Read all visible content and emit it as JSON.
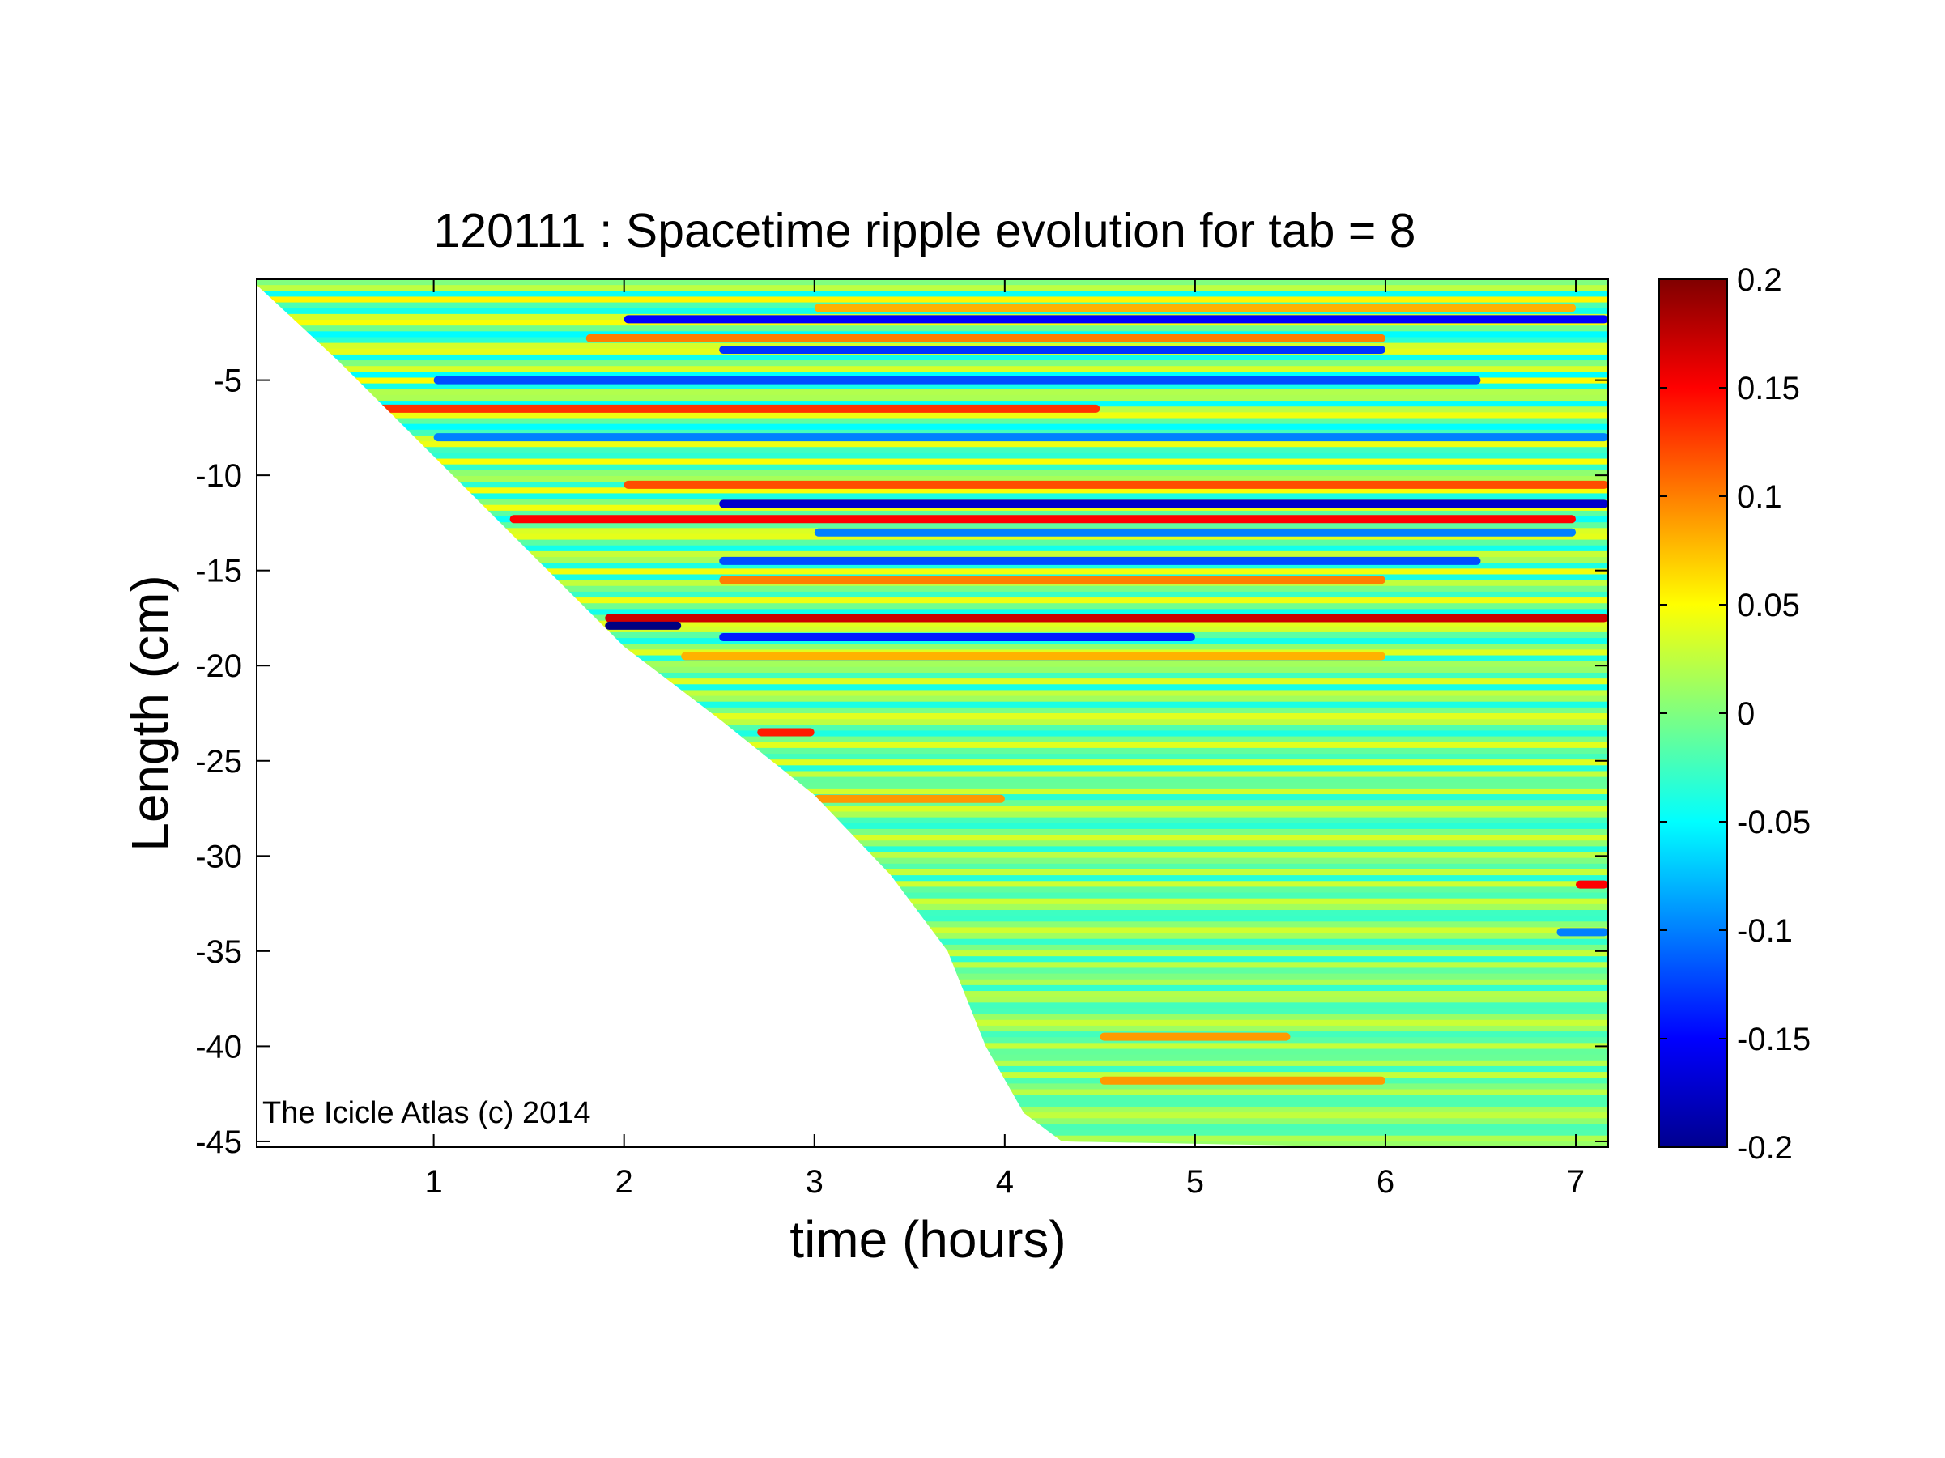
{
  "chart_data": {
    "type": "heatmap",
    "title": "120111 : Spacetime ripple evolution for tab = 8",
    "xlabel": "time (hours)",
    "ylabel": "Length (cm)",
    "xlim": [
      0.07,
      7.17
    ],
    "ylim": [
      -45.3,
      0.3
    ],
    "x_ticks": [
      1,
      2,
      3,
      4,
      5,
      6,
      7
    ],
    "x_tick_labels": [
      "1",
      "2",
      "3",
      "4",
      "5",
      "6",
      "7"
    ],
    "y_ticks": [
      -5,
      -10,
      -15,
      -20,
      -25,
      -30,
      -35,
      -40,
      -45
    ],
    "y_tick_labels": [
      "-5",
      "-10",
      "-15",
      "-20",
      "-25",
      "-30",
      "-35",
      "-40",
      "-45"
    ],
    "colorbar": {
      "colormap": "jet",
      "clim": [
        -0.2,
        0.2
      ],
      "ticks": [
        0.2,
        0.15,
        0.1,
        0.05,
        0,
        -0.05,
        -0.1,
        -0.15,
        -0.2
      ],
      "tick_labels": [
        "0.2",
        "0.15",
        "0.1",
        "0.05",
        "0",
        "-0.05",
        "-0.1",
        "-0.15",
        "-0.2"
      ]
    },
    "growth_front": [
      [
        0.07,
        0.0
      ],
      [
        0.5,
        -4.0
      ],
      [
        1.0,
        -9.0
      ],
      [
        1.5,
        -14.0
      ],
      [
        2.0,
        -19.0
      ],
      [
        2.5,
        -22.8
      ],
      [
        3.0,
        -26.8
      ],
      [
        3.4,
        -31.0
      ],
      [
        3.7,
        -35.0
      ],
      [
        3.9,
        -40.0
      ],
      [
        4.1,
        -43.5
      ],
      [
        4.3,
        -45.0
      ]
    ],
    "features": [
      {
        "y": -1.8,
        "x_start": 2.0,
        "x_end": 7.17,
        "value": -0.15
      },
      {
        "y": -1.2,
        "x_start": 3.0,
        "x_end": 7.0,
        "value": 0.08
      },
      {
        "y": -2.8,
        "x_start": 1.8,
        "x_end": 6.0,
        "value": 0.1
      },
      {
        "y": -3.4,
        "x_start": 2.5,
        "x_end": 6.0,
        "value": -0.13
      },
      {
        "y": -5.0,
        "x_start": 1.0,
        "x_end": 6.5,
        "value": -0.12
      },
      {
        "y": -6.5,
        "x_start": 0.6,
        "x_end": 4.5,
        "value": 0.13
      },
      {
        "y": -8.0,
        "x_start": 1.0,
        "x_end": 7.17,
        "value": -0.1
      },
      {
        "y": -10.5,
        "x_start": 2.0,
        "x_end": 7.17,
        "value": 0.12
      },
      {
        "y": -11.5,
        "x_start": 2.5,
        "x_end": 7.17,
        "value": -0.17
      },
      {
        "y": -12.3,
        "x_start": 1.4,
        "x_end": 7.0,
        "value": 0.15
      },
      {
        "y": -13.0,
        "x_start": 3.0,
        "x_end": 7.0,
        "value": -0.1
      },
      {
        "y": -14.5,
        "x_start": 2.5,
        "x_end": 6.5,
        "value": -0.12
      },
      {
        "y": -15.5,
        "x_start": 2.5,
        "x_end": 6.0,
        "value": 0.1
      },
      {
        "y": -17.5,
        "x_start": 1.9,
        "x_end": 7.17,
        "value": 0.17
      },
      {
        "y": -17.9,
        "x_start": 1.9,
        "x_end": 2.3,
        "value": -0.2
      },
      {
        "y": -18.5,
        "x_start": 2.5,
        "x_end": 5.0,
        "value": -0.14
      },
      {
        "y": -19.5,
        "x_start": 2.3,
        "x_end": 6.0,
        "value": 0.08
      },
      {
        "y": -23.5,
        "x_start": 2.7,
        "x_end": 3.0,
        "value": 0.14
      },
      {
        "y": -27.0,
        "x_start": 3.0,
        "x_end": 4.0,
        "value": 0.09
      },
      {
        "y": -31.5,
        "x_start": 7.0,
        "x_end": 7.17,
        "value": 0.15
      },
      {
        "y": -34.0,
        "x_start": 6.9,
        "x_end": 7.17,
        "value": -0.1
      },
      {
        "y": -39.5,
        "x_start": 4.5,
        "x_end": 5.5,
        "value": 0.09
      },
      {
        "y": -41.8,
        "x_start": 4.5,
        "x_end": 6.0,
        "value": 0.09
      }
    ]
  },
  "watermark": "The Icicle Atlas (c) 2014"
}
